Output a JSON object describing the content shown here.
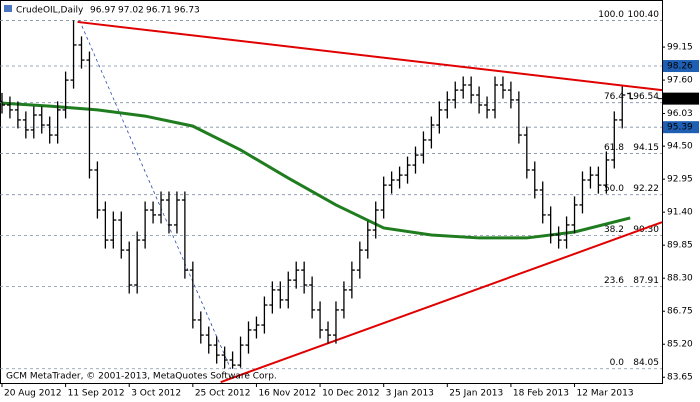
{
  "chart_data": {
    "type": "ohlc",
    "symbol": "CrudeOIL,Daily",
    "footer": "GCM MetaTrader, © 2001-2013, MetaQuotes Software Corp.",
    "bar_color": "#000000",
    "x": [
      0,
      2,
      4,
      6,
      8,
      10,
      12,
      14,
      16,
      18,
      20,
      22,
      24,
      26,
      28,
      30,
      32,
      34,
      36,
      38,
      40,
      42,
      44,
      46,
      48,
      50,
      52,
      54,
      56,
      58,
      60,
      62,
      64,
      66,
      68,
      70,
      72,
      74,
      76,
      78,
      80,
      82,
      84,
      86,
      88,
      90,
      92,
      94,
      96,
      98,
      100,
      102,
      104,
      106,
      108,
      110,
      112,
      114,
      116,
      118,
      120,
      122,
      124,
      126,
      128,
      130,
      132,
      134,
      136,
      138,
      140,
      142,
      144,
      146,
      148,
      150,
      152,
      154,
      156,
      158
    ],
    "open": [
      96.6,
      96.43,
      96.2,
      95.73,
      95.26,
      95.96,
      95.49,
      95.02,
      96.2,
      97.6,
      99.25,
      98.54,
      93.38,
      91.5,
      90.09,
      91.03,
      89.62,
      87.98,
      90.09,
      91.5,
      91.27,
      91.97,
      90.8,
      91.97,
      88.68,
      86.34,
      85.63,
      85.16,
      84.69,
      84.46,
      84.22,
      85.16,
      85.87,
      86.1,
      87.04,
      87.75,
      87.28,
      88.21,
      88.68,
      87.98,
      86.81,
      85.87,
      85.63,
      86.81,
      87.75,
      88.68,
      89.62,
      90.56,
      91.5,
      92.67,
      92.91,
      93.14,
      93.61,
      94.08,
      94.79,
      95.49,
      96.2,
      96.67,
      97.13,
      97.37,
      96.9,
      96.43,
      96.2,
      97.37,
      97.13,
      96.67,
      95.02,
      93.38,
      92.44,
      91.27,
      90.33,
      90.09,
      90.8,
      91.74,
      92.91,
      93.14,
      92.67,
      93.85,
      95.73,
      96.97
    ],
    "high": [
      97.0,
      96.83,
      96.6,
      96.13,
      96.36,
      96.36,
      95.89,
      96.6,
      98.0,
      100.4,
      99.65,
      98.94,
      93.78,
      91.9,
      91.43,
      91.43,
      90.02,
      90.49,
      91.9,
      91.9,
      92.37,
      92.37,
      92.37,
      92.37,
      89.08,
      86.74,
      86.03,
      85.56,
      85.09,
      84.86,
      85.56,
      86.27,
      86.5,
      87.44,
      88.15,
      88.15,
      88.61,
      89.08,
      89.08,
      88.38,
      87.21,
      86.27,
      87.21,
      88.15,
      89.08,
      90.02,
      90.96,
      91.9,
      93.07,
      93.31,
      93.54,
      94.01,
      94.48,
      95.19,
      95.89,
      96.6,
      97.07,
      97.53,
      97.77,
      97.77,
      97.3,
      96.83,
      97.77,
      97.77,
      97.53,
      97.07,
      95.42,
      93.78,
      92.84,
      91.67,
      90.73,
      91.2,
      92.14,
      93.31,
      93.54,
      93.54,
      94.25,
      96.13,
      97.3,
      97.02
    ],
    "low": [
      96.03,
      95.8,
      95.33,
      94.86,
      94.86,
      95.09,
      94.62,
      94.62,
      95.8,
      97.2,
      98.14,
      92.98,
      91.1,
      89.69,
      89.69,
      89.22,
      87.58,
      87.58,
      89.69,
      90.87,
      90.87,
      90.4,
      90.4,
      88.28,
      85.94,
      85.23,
      84.76,
      84.29,
      84.06,
      84.05,
      84.1,
      84.76,
      85.47,
      85.7,
      86.64,
      86.88,
      86.88,
      87.81,
      87.58,
      86.41,
      85.47,
      85.23,
      85.23,
      86.41,
      87.35,
      88.28,
      89.22,
      90.16,
      91.1,
      92.27,
      92.51,
      92.74,
      93.21,
      93.68,
      94.39,
      95.09,
      95.8,
      96.27,
      96.73,
      96.5,
      96.03,
      95.8,
      95.8,
      96.73,
      96.27,
      94.62,
      92.98,
      92.04,
      90.87,
      89.93,
      89.69,
      89.69,
      90.4,
      91.34,
      92.51,
      92.27,
      92.27,
      93.45,
      95.33,
      96.71
    ],
    "close": [
      96.43,
      96.2,
      95.73,
      95.26,
      95.96,
      95.49,
      95.02,
      96.2,
      97.6,
      99.25,
      98.54,
      93.38,
      91.5,
      90.09,
      91.03,
      89.62,
      87.98,
      90.09,
      91.5,
      91.27,
      91.97,
      90.8,
      91.97,
      88.68,
      86.34,
      85.63,
      85.16,
      84.69,
      84.46,
      84.22,
      85.16,
      85.87,
      86.1,
      87.04,
      87.75,
      87.28,
      88.21,
      88.68,
      87.98,
      86.81,
      85.87,
      85.63,
      86.81,
      87.75,
      88.68,
      89.62,
      90.56,
      91.5,
      92.67,
      92.91,
      93.14,
      93.61,
      94.08,
      94.79,
      95.49,
      96.2,
      96.67,
      97.13,
      97.37,
      96.9,
      96.43,
      96.2,
      97.37,
      97.13,
      96.67,
      95.02,
      93.38,
      92.44,
      91.27,
      90.33,
      90.09,
      90.8,
      91.74,
      92.91,
      93.14,
      92.67,
      93.85,
      95.73,
      96.9,
      96.73
    ],
    "moving_average": {
      "color": "#1f7d1f",
      "x": [
        0,
        12,
        24,
        36,
        48,
        60,
        72,
        84,
        96,
        108,
        120,
        132,
        144,
        158
      ],
      "values": [
        96.52,
        96.38,
        96.2,
        95.91,
        95.44,
        94.32,
        93.0,
        91.74,
        90.66,
        90.33,
        90.19,
        90.19,
        90.47,
        91.13
      ]
    },
    "trendlines": [
      {
        "color": "#e00000",
        "x": [
          19,
          166
        ],
        "values": [
          100.33,
          97.13
        ]
      },
      {
        "color": "#e00000",
        "x": [
          55,
          166
        ],
        "values": [
          83.42,
          90.93
        ]
      }
    ],
    "fib_line": {
      "color": "#2a4aa8",
      "x": [
        19.5,
        57.5
      ],
      "values": [
        100.4,
        84.05
      ]
    },
    "fib_levels": [
      {
        "ratio": "100.0",
        "value": 100.4,
        "label": "100.40"
      },
      {
        "ratio": "76.4",
        "value": 96.54,
        "label": "96.54"
      },
      {
        "ratio": "61.8",
        "value": 94.15,
        "label": "94.15"
      },
      {
        "ratio": "50.0",
        "value": 92.22,
        "label": "92.22"
      },
      {
        "ratio": "38.2",
        "value": 90.3,
        "label": "90.30"
      },
      {
        "ratio": "23.6",
        "value": 87.91,
        "label": "87.91"
      },
      {
        "ratio": "0.0",
        "value": 84.05,
        "label": "84.05"
      }
    ],
    "price_levels": [
      98.26,
      95.39
    ],
    "level_color": "#1e5fb4",
    "xlim": [
      -0.5,
      166
    ],
    "ylim": [
      83.38,
      101.36
    ],
    "yticks": [
      99.15,
      {
        "value": 97.6,
        "label": "97.60"
      },
      96.03,
      {
        "value": 94.5,
        "label": "94.50"
      },
      92.95,
      {
        "value": 91.4,
        "label": "91.40"
      },
      89.85,
      {
        "value": 88.3,
        "label": "88.30"
      },
      86.75,
      {
        "value": 85.2,
        "label": "85.20"
      },
      83.65
    ],
    "xticks": [
      {
        "value": 0,
        "label": "20 Aug 2012"
      },
      {
        "value": 16,
        "label": "11 Sep 2012"
      },
      {
        "value": 32,
        "label": "3 Oct 2012"
      },
      {
        "value": 48,
        "label": "25 Oct 2012"
      },
      {
        "value": 64,
        "label": "16 Nov 2012"
      },
      {
        "value": 80,
        "label": "10 Dec 2012"
      },
      {
        "value": 96,
        "label": "3 Jan 2013"
      },
      {
        "value": 112,
        "label": "25 Jan 2013"
      },
      {
        "value": 128,
        "label": "18 Feb 2013"
      },
      {
        "value": 144,
        "label": "12 Mar 2013"
      }
    ]
  }
}
